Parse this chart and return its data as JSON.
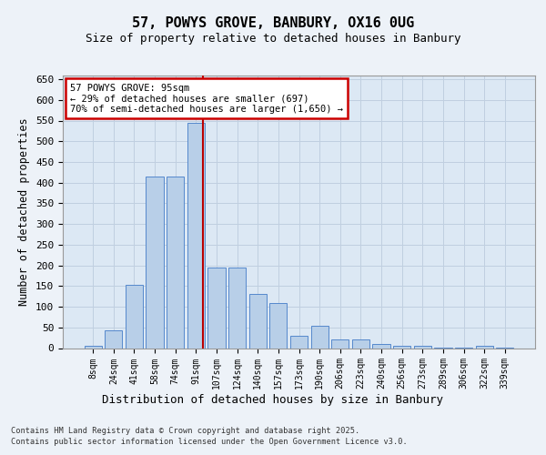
{
  "title": "57, POWYS GROVE, BANBURY, OX16 0UG",
  "subtitle": "Size of property relative to detached houses in Banbury",
  "xlabel": "Distribution of detached houses by size in Banbury",
  "ylabel": "Number of detached properties",
  "categories": [
    "8sqm",
    "24sqm",
    "41sqm",
    "58sqm",
    "74sqm",
    "91sqm",
    "107sqm",
    "124sqm",
    "140sqm",
    "157sqm",
    "173sqm",
    "190sqm",
    "206sqm",
    "223sqm",
    "240sqm",
    "256sqm",
    "273sqm",
    "289sqm",
    "306sqm",
    "322sqm",
    "339sqm"
  ],
  "values": [
    5,
    42,
    152,
    415,
    415,
    545,
    195,
    195,
    130,
    110,
    30,
    55,
    20,
    20,
    10,
    5,
    5,
    2,
    2,
    5,
    2
  ],
  "bar_color": "#b8cfe8",
  "bar_edge_color": "#5588cc",
  "grid_color": "#c0cfe0",
  "background_color": "#dce8f4",
  "red_line_x": 5.35,
  "annotation_title": "57 POWYS GROVE: 95sqm",
  "annotation_line1": "← 29% of detached houses are smaller (697)",
  "annotation_line2": "70% of semi-detached houses are larger (1,650) →",
  "ylim_max": 660,
  "ytick_step": 50,
  "footer1": "Contains HM Land Registry data © Crown copyright and database right 2025.",
  "footer2": "Contains public sector information licensed under the Open Government Licence v3.0."
}
